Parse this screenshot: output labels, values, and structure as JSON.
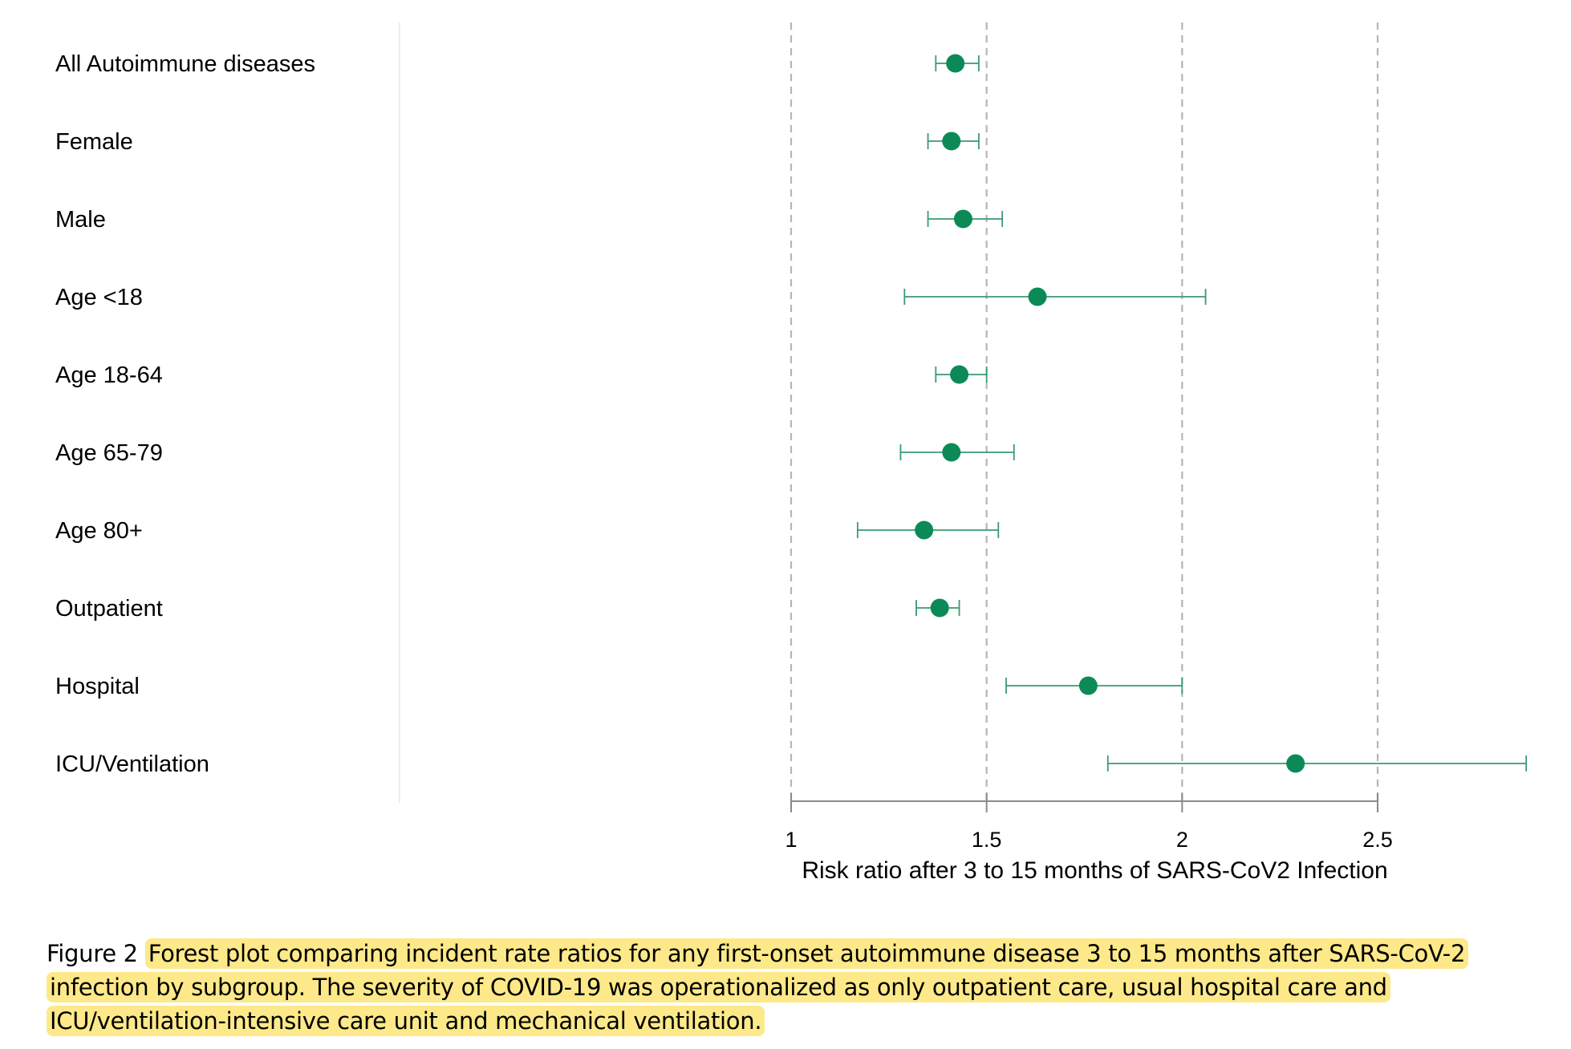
{
  "chart_data": {
    "type": "forest",
    "categories": [
      "All Autoimmune diseases",
      "Female",
      "Male",
      "Age <18",
      "Age 18-64",
      "Age 65-79",
      "Age 80+",
      "Outpatient",
      "Hospital",
      "ICU/Ventilation"
    ],
    "estimates": [
      1.42,
      1.41,
      1.44,
      1.63,
      1.43,
      1.41,
      1.34,
      1.38,
      1.76,
      2.29
    ],
    "ci_lower": [
      1.37,
      1.35,
      1.35,
      1.29,
      1.37,
      1.28,
      1.17,
      1.32,
      1.55,
      1.81
    ],
    "ci_upper": [
      1.48,
      1.48,
      1.54,
      2.06,
      1.5,
      1.57,
      1.53,
      1.43,
      2.0,
      2.88
    ],
    "xticks": [
      1,
      1.5,
      2,
      2.5
    ],
    "tick_labels": [
      "1",
      "1.5",
      "2",
      "2.5"
    ],
    "xlim": [
      1,
      2.88
    ],
    "xlabel": "Risk ratio after 3 to 15 months of SARS-CoV2 Infection",
    "reference_lines": "dashed vertical at each tick",
    "grid": false,
    "marker_color": "#0b8a57",
    "line_color": "#3a9a70",
    "dash_color": "#b5b5b5"
  },
  "caption": {
    "label": "Figure 2",
    "text": "Forest plot comparing incident rate ratios for any first-onset autoimmune disease 3 to 15 months after SARS-CoV-2 infection by subgroup. The severity of COVID-19 was operationalized as only outpatient care, usual hospital care and ICU/ventilation-intensive care unit and mechanical ventilation.",
    "highlight_color": "#fde989"
  }
}
